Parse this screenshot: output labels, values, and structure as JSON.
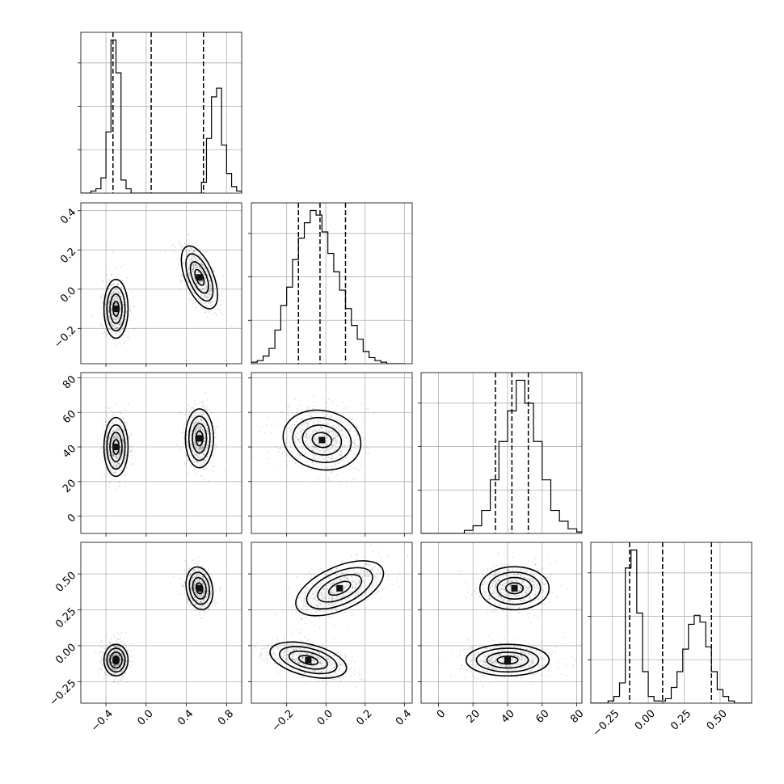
{
  "chart_data": {
    "type": "corner",
    "parameters": 4,
    "grid": true,
    "ranges": [
      [
        -0.65,
        0.95
      ],
      [
        -0.38,
        0.44
      ],
      [
        -10,
        83
      ],
      [
        -0.4,
        0.72
      ]
    ],
    "x_tick_values": [
      [
        -0.4,
        0.0,
        0.4,
        0.8
      ],
      [
        -0.2,
        0.0,
        0.2,
        0.4
      ],
      [
        0,
        20,
        40,
        60,
        80
      ],
      [
        -0.25,
        0.0,
        0.25,
        0.5
      ]
    ],
    "x_tick_labels": [
      [
        "−0.4",
        "0.0",
        "0.4",
        "0.8"
      ],
      [
        "−0.2",
        "0.0",
        "0.2",
        "0.4"
      ],
      [
        "0",
        "20",
        "40",
        "60",
        "80"
      ],
      [
        "−0.25",
        "0.00",
        "0.25",
        "0.50"
      ]
    ],
    "y_tick_values": [
      null,
      [
        -0.2,
        0.0,
        0.2,
        0.4
      ],
      [
        0,
        20,
        40,
        60,
        80
      ],
      [
        -0.25,
        0.0,
        0.25,
        0.5
      ]
    ],
    "y_tick_labels": [
      null,
      [
        "−0.2",
        "0.0",
        "0.2",
        "0.4"
      ],
      [
        "0",
        "20",
        "40",
        "60",
        "80"
      ],
      [
        "−0.25",
        "0.00",
        "0.25",
        "0.50"
      ]
    ],
    "quantiles": [
      [
        -0.33,
        0.05,
        0.57
      ],
      [
        -0.14,
        -0.03,
        0.1
      ],
      [
        33,
        42.5,
        52
      ],
      [
        -0.13,
        0.1,
        0.44
      ]
    ],
    "histograms": [
      {
        "bins": [
          -0.65,
          -0.6,
          -0.55,
          -0.5,
          -0.45,
          -0.4,
          -0.35,
          -0.3,
          -0.25,
          -0.2,
          -0.15,
          -0.1,
          -0.05,
          0.0,
          0.05,
          0.1,
          0.15,
          0.2,
          0.25,
          0.3,
          0.35,
          0.4,
          0.45,
          0.5,
          0.55,
          0.6,
          0.65,
          0.7,
          0.75,
          0.8,
          0.85,
          0.9,
          0.95
        ],
        "counts": [
          0,
          0,
          1,
          2,
          7,
          28,
          70,
          55,
          6,
          2,
          0,
          0,
          0,
          0,
          0,
          0,
          0,
          0,
          0,
          0,
          0,
          0,
          0,
          0,
          5,
          25,
          44,
          48,
          22,
          9,
          3,
          1
        ]
      },
      {
        "bins": [
          -0.38,
          -0.35,
          -0.32,
          -0.29,
          -0.26,
          -0.23,
          -0.2,
          -0.17,
          -0.14,
          -0.11,
          -0.08,
          -0.05,
          -0.02,
          0.01,
          0.04,
          0.07,
          0.1,
          0.13,
          0.16,
          0.19,
          0.22,
          0.25,
          0.28,
          0.31,
          0.34,
          0.37,
          0.4
        ],
        "counts": [
          0.01,
          0.02,
          0.05,
          0.1,
          0.22,
          0.38,
          0.5,
          0.68,
          0.82,
          0.92,
          1.0,
          0.97,
          0.86,
          0.72,
          0.6,
          0.48,
          0.36,
          0.25,
          0.16,
          0.08,
          0.04,
          0.02,
          0.01,
          0.0,
          0.0,
          0.0
        ]
      },
      {
        "bins": [
          -10,
          -5,
          0,
          5,
          10,
          15,
          20,
          25,
          30,
          35,
          40,
          45,
          50,
          55,
          60,
          65,
          70,
          75,
          80,
          85
        ],
        "counts": [
          0,
          0,
          0,
          0,
          0,
          0.02,
          0.05,
          0.15,
          0.35,
          0.6,
          0.8,
          1.0,
          0.85,
          0.6,
          0.35,
          0.15,
          0.08,
          0.03,
          0.01
        ]
      },
      {
        "bins": [
          -0.4,
          -0.36,
          -0.32,
          -0.28,
          -0.24,
          -0.2,
          -0.16,
          -0.12,
          -0.08,
          -0.04,
          0.0,
          0.04,
          0.08,
          0.12,
          0.16,
          0.2,
          0.24,
          0.28,
          0.32,
          0.36,
          0.4,
          0.44,
          0.48,
          0.52,
          0.56,
          0.6,
          0.64,
          0.68,
          0.72
        ],
        "counts": [
          0,
          0,
          0,
          1,
          3,
          9,
          60,
          68,
          40,
          14,
          3,
          1,
          1,
          2,
          7,
          14,
          24,
          35,
          39,
          36,
          25,
          14,
          6,
          3,
          1,
          0,
          0,
          0
        ]
      }
    ],
    "joint_modes": [
      {
        "xi": 0,
        "yi": 1,
        "modes": [
          {
            "cx": -0.3,
            "cy": -0.1,
            "sx": 0.06,
            "sy": 0.075,
            "angle": 0
          },
          {
            "cx": 0.53,
            "cy": 0.06,
            "sx": 0.07,
            "sy": 0.085,
            "angle": -22
          }
        ]
      },
      {
        "xi": 0,
        "yi": 2,
        "modes": [
          {
            "cx": -0.3,
            "cy": 40,
            "sx": 0.06,
            "sy": 8.5,
            "angle": 0
          },
          {
            "cx": 0.53,
            "cy": 45,
            "sx": 0.07,
            "sy": 8.5,
            "angle": 0
          }
        ]
      },
      {
        "xi": 0,
        "yi": 3,
        "modes": [
          {
            "cx": -0.3,
            "cy": -0.1,
            "sx": 0.06,
            "sy": 0.055,
            "angle": 0
          },
          {
            "cx": 0.53,
            "cy": 0.4,
            "sx": 0.065,
            "sy": 0.075,
            "angle": -10
          }
        ]
      },
      {
        "xi": 1,
        "yi": 2,
        "modes": [
          {
            "cx": -0.02,
            "cy": 44,
            "sx": 0.1,
            "sy": 8.5,
            "angle": 12
          }
        ]
      },
      {
        "xi": 1,
        "yi": 3,
        "modes": [
          {
            "cx": -0.09,
            "cy": -0.1,
            "sx": 0.1,
            "sy": 0.055,
            "angle": 14
          },
          {
            "cx": 0.07,
            "cy": 0.4,
            "sx": 0.12,
            "sy": 0.075,
            "angle": -24
          }
        ]
      },
      {
        "xi": 2,
        "yi": 3,
        "modes": [
          {
            "cx": 40,
            "cy": -0.1,
            "sx": 12,
            "sy": 0.055,
            "angle": 0
          },
          {
            "cx": 44,
            "cy": 0.4,
            "sx": 10,
            "sy": 0.075,
            "angle": 0
          }
        ]
      }
    ]
  }
}
